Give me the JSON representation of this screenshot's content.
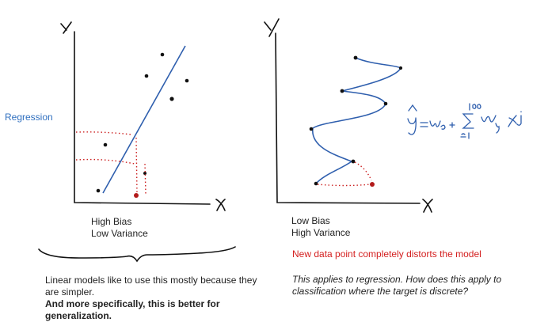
{
  "left_side_label": "Regression",
  "left_plot": {
    "caption_line1": "High Bias",
    "caption_line2": "Low Variance"
  },
  "right_plot": {
    "caption_line1": "Low Bias",
    "caption_line2": "High Variance",
    "warning": "New data point completely distorts the model"
  },
  "notes_left": {
    "normal_text": "Linear models like to use this mostly because they are simpler.",
    "bold_text": "And more specifically, this is better for generalization."
  },
  "notes_right": {
    "italic_text": "This applies to regression. How does this apply to classification where the target is discrete?"
  },
  "colors": {
    "ink": "#111111",
    "model_line": "#2f5fae",
    "new_point": "#b31b1b",
    "regression_label": "#2f6fbf",
    "warning_text": "#d42020"
  }
}
